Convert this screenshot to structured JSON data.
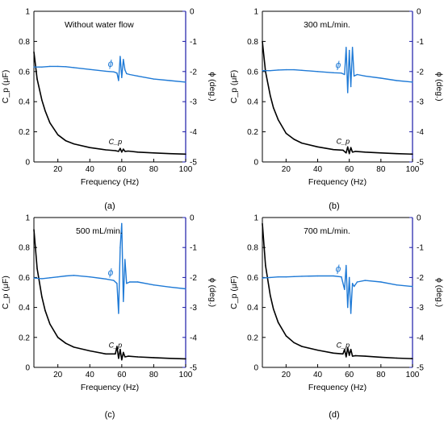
{
  "figure": {
    "panels": [
      {
        "id": "a",
        "label": "(a)",
        "title": "Without water flow",
        "xlabel": "Frequency (Hz)",
        "ylabel_left": "C_p (μF)",
        "ylabel_right": "ϕ (deg.)"
      },
      {
        "id": "b",
        "label": "(b)",
        "title": "300 mL/min.",
        "xlabel": "Frequency (Hz)",
        "ylabel_left": "C_p (μF)",
        "ylabel_right": "ϕ (deg.)"
      },
      {
        "id": "c",
        "label": "(c)",
        "title": "500 mL/min.",
        "xlabel": "Frequency (Hz)",
        "ylabel_left": "C_p (μF)",
        "ylabel_right": "ϕ (deg.)"
      },
      {
        "id": "d",
        "label": "(d)",
        "title": "700 mL/min.",
        "xlabel": "Frequency (Hz)",
        "ylabel_left": "C_p (μF)",
        "ylabel_right": "ϕ (deg.)"
      }
    ]
  },
  "colors": {
    "cp": "#000000",
    "phi": "#1f7ad6",
    "axis_right": "#1a1aa8"
  },
  "chart_data": [
    {
      "type": "line",
      "title": "Without water flow",
      "xlabel": "Frequency (Hz)",
      "ylabel": "C_p (μF)",
      "y2label": "ϕ (deg.)",
      "xlim": [
        5,
        100
      ],
      "ylim": [
        0,
        1
      ],
      "y2lim": [
        -5,
        0
      ],
      "xticks": [
        20,
        40,
        60,
        80,
        100
      ],
      "yticks": [
        0,
        0.2,
        0.4,
        0.6,
        0.8,
        1
      ],
      "y2ticks": [
        -5,
        -4,
        -3,
        -2,
        -1,
        0
      ],
      "annotations": [
        "ϕ",
        "C_p"
      ],
      "series": [
        {
          "axis": "left",
          "x": [
            5,
            7,
            10,
            12,
            15,
            20,
            25,
            30,
            40,
            50,
            56,
            58,
            59,
            60,
            61,
            62,
            64,
            70,
            80,
            90,
            100
          ],
          "values": [
            0.73,
            0.55,
            0.41,
            0.34,
            0.26,
            0.18,
            0.14,
            0.12,
            0.095,
            0.08,
            0.075,
            0.07,
            0.09,
            0.065,
            0.085,
            0.07,
            0.072,
            0.065,
            0.06,
            0.055,
            0.052
          ]
        },
        {
          "axis": "right",
          "x": [
            5,
            10,
            15,
            20,
            25,
            30,
            40,
            50,
            55,
            57,
            58,
            59,
            60,
            61,
            62,
            63,
            65,
            70,
            80,
            90,
            100
          ],
          "values": [
            -1.85,
            -1.85,
            -1.83,
            -1.83,
            -1.84,
            -1.87,
            -1.93,
            -1.99,
            -2.01,
            -2.05,
            -2.3,
            -1.5,
            -2.2,
            -1.6,
            -1.95,
            -2.07,
            -2.1,
            -2.15,
            -2.25,
            -2.3,
            -2.35
          ]
        }
      ]
    },
    {
      "type": "line",
      "title": "300 mL/min.",
      "xlabel": "Frequency (Hz)",
      "ylabel": "C_p (μF)",
      "y2label": "ϕ (deg.)",
      "xlim": [
        5,
        100
      ],
      "ylim": [
        0,
        1
      ],
      "y2lim": [
        -5,
        0
      ],
      "xticks": [
        20,
        40,
        60,
        80,
        100
      ],
      "yticks": [
        0,
        0.2,
        0.4,
        0.6,
        0.8,
        1
      ],
      "y2ticks": [
        -5,
        -4,
        -3,
        -2,
        -1,
        0
      ],
      "annotations": [
        "ϕ",
        "C_p"
      ],
      "series": [
        {
          "axis": "left",
          "x": [
            5,
            7,
            10,
            12,
            15,
            20,
            25,
            30,
            40,
            50,
            56,
            58,
            59,
            60,
            61,
            62,
            64,
            70,
            80,
            90,
            100
          ],
          "values": [
            0.8,
            0.6,
            0.44,
            0.36,
            0.28,
            0.19,
            0.15,
            0.125,
            0.1,
            0.082,
            0.078,
            0.06,
            0.1,
            0.055,
            0.095,
            0.065,
            0.07,
            0.065,
            0.06,
            0.055,
            0.052
          ]
        },
        {
          "axis": "right",
          "x": [
            5,
            10,
            15,
            20,
            25,
            30,
            40,
            50,
            55,
            57,
            58,
            59,
            60,
            61,
            62,
            63,
            65,
            70,
            80,
            90,
            100
          ],
          "values": [
            -1.97,
            -1.97,
            -1.95,
            -1.94,
            -1.94,
            -1.96,
            -2.0,
            -2.04,
            -2.05,
            -2.1,
            -1.2,
            -2.7,
            -1.3,
            -2.5,
            -1.2,
            -2.15,
            -2.1,
            -2.15,
            -2.22,
            -2.3,
            -2.35
          ]
        }
      ]
    },
    {
      "type": "line",
      "title": "500 mL/min.",
      "xlabel": "Frequency (Hz)",
      "ylabel": "C_p (μF)",
      "y2label": "ϕ (deg.)",
      "xlim": [
        5,
        100
      ],
      "ylim": [
        0,
        1
      ],
      "y2lim": [
        -5,
        0
      ],
      "xticks": [
        20,
        40,
        60,
        80,
        100
      ],
      "yticks": [
        0,
        0.2,
        0.4,
        0.6,
        0.8,
        1
      ],
      "y2ticks": [
        -5,
        -4,
        -3,
        -2,
        -1,
        0
      ],
      "annotations": [
        "ϕ",
        "C_p"
      ],
      "series": [
        {
          "axis": "left",
          "x": [
            5,
            7,
            10,
            12,
            15,
            20,
            25,
            30,
            40,
            50,
            56,
            57,
            58,
            59,
            60,
            61,
            62,
            64,
            70,
            80,
            90,
            100
          ],
          "values": [
            0.92,
            0.66,
            0.47,
            0.38,
            0.29,
            0.2,
            0.16,
            0.135,
            0.11,
            0.09,
            0.09,
            0.14,
            0.06,
            0.12,
            0.05,
            0.1,
            0.07,
            0.075,
            0.07,
            0.065,
            0.06,
            0.057
          ]
        },
        {
          "axis": "right",
          "x": [
            5,
            10,
            15,
            20,
            25,
            30,
            40,
            50,
            55,
            57,
            58,
            59,
            60,
            61,
            62,
            63,
            65,
            70,
            80,
            90,
            100
          ],
          "values": [
            -2.02,
            -2.04,
            -2.01,
            -1.98,
            -1.95,
            -1.93,
            -1.98,
            -2.05,
            -2.1,
            -2.2,
            -3.2,
            -1.0,
            -0.2,
            -2.8,
            -1.4,
            -2.2,
            -2.15,
            -2.15,
            -2.25,
            -2.32,
            -2.38
          ]
        }
      ]
    },
    {
      "type": "line",
      "title": "700 mL/min.",
      "xlabel": "Frequency (Hz)",
      "ylabel": "C_p (μF)",
      "y2label": "ϕ (deg.)",
      "xlim": [
        5,
        100
      ],
      "ylim": [
        0,
        1
      ],
      "y2lim": [
        -5,
        0
      ],
      "xticks": [
        20,
        40,
        60,
        80,
        100
      ],
      "yticks": [
        0,
        0.2,
        0.4,
        0.6,
        0.8,
        1
      ],
      "y2ticks": [
        -5,
        -4,
        -3,
        -2,
        -1,
        0
      ],
      "annotations": [
        "ϕ",
        "C_p"
      ],
      "series": [
        {
          "axis": "left",
          "x": [
            5,
            7,
            10,
            12,
            15,
            20,
            25,
            30,
            40,
            50,
            56,
            57,
            58,
            59,
            60,
            61,
            62,
            64,
            70,
            80,
            90,
            100
          ],
          "values": [
            0.96,
            0.68,
            0.48,
            0.39,
            0.3,
            0.21,
            0.165,
            0.14,
            0.115,
            0.095,
            0.09,
            0.12,
            0.07,
            0.13,
            0.08,
            0.12,
            0.075,
            0.078,
            0.075,
            0.068,
            0.062,
            0.058
          ]
        },
        {
          "axis": "right",
          "x": [
            5,
            10,
            15,
            20,
            25,
            30,
            40,
            50,
            55,
            57,
            58,
            59,
            60,
            61,
            62,
            63,
            65,
            70,
            80,
            90,
            100
          ],
          "values": [
            -2.02,
            -2.0,
            -1.98,
            -1.98,
            -1.97,
            -1.96,
            -1.95,
            -1.95,
            -1.98,
            -2.4,
            -1.6,
            -3.0,
            -2.0,
            -3.2,
            -2.2,
            -2.3,
            -2.15,
            -2.1,
            -2.15,
            -2.25,
            -2.3
          ]
        }
      ]
    }
  ]
}
